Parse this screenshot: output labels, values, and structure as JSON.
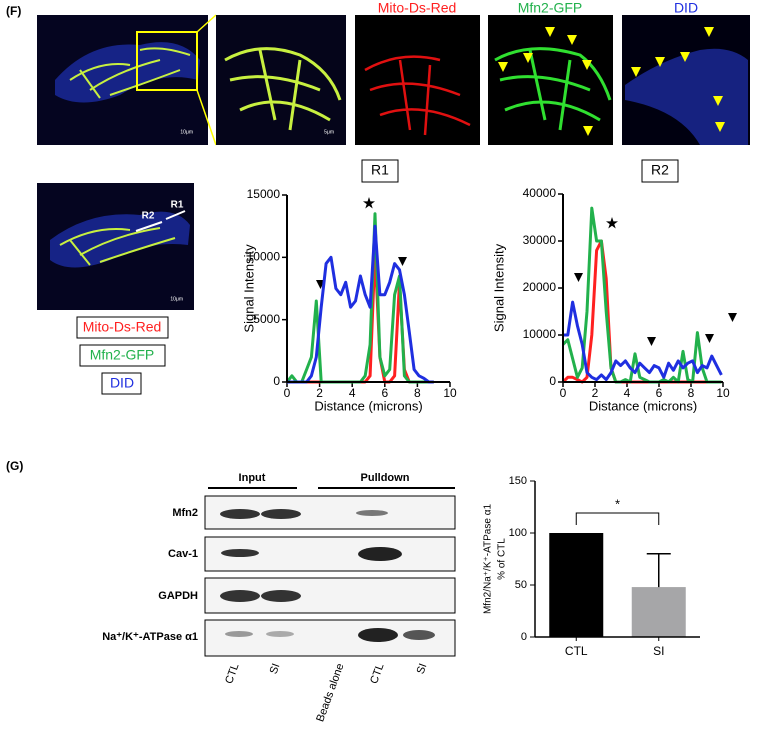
{
  "panel_f": {
    "label": "(F)",
    "channels": [
      "Mito-Ds-Red",
      "Mfn2-GFP",
      "DID"
    ],
    "scale_bars": [
      "10μm",
      "5μm",
      "10μm"
    ],
    "roi_labels": [
      "R2",
      "R1"
    ]
  },
  "chart_data": [
    {
      "type": "line",
      "title": "R1",
      "xlabel": "Distance (microns)",
      "ylabel": "Signal Intensity",
      "x": [
        0,
        0.3,
        0.6,
        0.9,
        1.2,
        1.5,
        1.8,
        2.1,
        2.4,
        2.7,
        3.0,
        3.3,
        3.6,
        3.9,
        4.2,
        4.5,
        4.8,
        5.1,
        5.4,
        5.7,
        6.0,
        6.3,
        6.6,
        6.9,
        7.2,
        7.5,
        7.8,
        8.1,
        8.4,
        8.7,
        9.0
      ],
      "series": [
        {
          "name": "Mito-Ds-Red",
          "color": "#ff2020",
          "values": [
            0,
            0,
            0,
            0,
            0,
            0,
            0,
            0,
            0,
            0,
            0,
            0,
            0,
            0,
            0,
            0,
            0,
            500,
            10500,
            2000,
            0,
            0,
            500,
            8000,
            1000,
            0,
            0,
            0,
            0,
            0,
            0
          ]
        },
        {
          "name": "Mfn2-GFP",
          "color": "#22b14c",
          "values": [
            0,
            500,
            0,
            0,
            1000,
            2000,
            6500,
            0,
            0,
            0,
            0,
            0,
            0,
            0,
            0,
            0,
            500,
            3000,
            13500,
            2000,
            500,
            1000,
            7000,
            8500,
            500,
            0,
            0,
            0,
            0,
            0,
            0
          ]
        },
        {
          "name": "DID",
          "color": "#1f2fe0",
          "values": [
            0,
            0,
            0,
            0,
            0,
            500,
            2000,
            6000,
            9500,
            10000,
            7500,
            7000,
            8000,
            6000,
            6500,
            8500,
            7000,
            6000,
            12500,
            7000,
            7000,
            8000,
            9500,
            9000,
            7000,
            4000,
            1000,
            500,
            300,
            0,
            0
          ]
        }
      ],
      "xlim": [
        0,
        10
      ],
      "xticks": [
        0,
        2,
        4,
        6,
        8,
        10
      ],
      "ylim": [
        0,
        15000
      ],
      "yticks": [
        0,
        5000,
        10000,
        15000
      ]
    },
    {
      "type": "line",
      "title": "R2",
      "xlabel": "Distance (microns)",
      "ylabel": "Signal Intensity",
      "x": [
        0,
        0.3,
        0.6,
        0.9,
        1.2,
        1.5,
        1.8,
        2.1,
        2.4,
        2.7,
        3.0,
        3.3,
        3.6,
        3.9,
        4.2,
        4.5,
        4.8,
        5.1,
        5.4,
        5.7,
        6.0,
        6.3,
        6.6,
        6.9,
        7.2,
        7.5,
        7.8,
        8.1,
        8.4,
        8.7,
        9.0,
        9.3,
        9.6,
        9.9
      ],
      "series": [
        {
          "name": "Mito-Ds-Red",
          "color": "#ff2020",
          "values": [
            0,
            1000,
            1000,
            500,
            0,
            1000,
            10000,
            28000,
            30000,
            22000,
            3000,
            0,
            0,
            0,
            0,
            0,
            0,
            0,
            0,
            0,
            0,
            0,
            0,
            0,
            0,
            0,
            0,
            0,
            0,
            0,
            0,
            0,
            0,
            0
          ]
        },
        {
          "name": "Mfn2-GFP",
          "color": "#22b14c",
          "values": [
            8000,
            9000,
            5000,
            1000,
            3000,
            15000,
            37000,
            30000,
            30000,
            15000,
            3000,
            0,
            0,
            500,
            0,
            6000,
            1000,
            500,
            0,
            0,
            0,
            500,
            0,
            1000,
            0,
            6500,
            500,
            0,
            10500,
            3000,
            0,
            0,
            0,
            0
          ]
        },
        {
          "name": "DID",
          "color": "#1f2fe0",
          "values": [
            10000,
            10000,
            17000,
            12000,
            8000,
            2000,
            1000,
            500,
            1500,
            500,
            2000,
            4500,
            3500,
            4500,
            3000,
            2000,
            4000,
            3000,
            2000,
            3500,
            3000,
            1000,
            4000,
            2500,
            4500,
            3000,
            4000,
            4500,
            2000,
            3500,
            3000,
            5500,
            3500,
            1500
          ]
        }
      ],
      "xlim": [
        0,
        10
      ],
      "xticks": [
        0,
        2,
        4,
        6,
        8,
        10
      ],
      "ylim": [
        0,
        40000
      ],
      "yticks": [
        0,
        10000,
        20000,
        30000,
        40000
      ]
    },
    {
      "type": "bar",
      "ylabel": [
        "Mfn2/Na⁺/K⁺-ATPase α1",
        "% of CTL"
      ],
      "categories": [
        "CTL",
        "SI"
      ],
      "values": [
        100,
        48
      ],
      "errors": [
        null,
        32
      ],
      "colors": [
        "#000000",
        "#a6a6a8"
      ],
      "ylim": [
        0,
        150
      ],
      "yticks": [
        0,
        50,
        100,
        150
      ],
      "annotation": "*"
    }
  ],
  "panel_g": {
    "label": "(G)",
    "groups": [
      "Input",
      "Pulldown"
    ],
    "rows": [
      "Mfn2",
      "Cav-1",
      "GAPDH",
      "Na⁺/K⁺-ATPase α1"
    ],
    "columns": [
      "CTL",
      "SI",
      "Beads alone",
      "CTL",
      "SI"
    ]
  }
}
